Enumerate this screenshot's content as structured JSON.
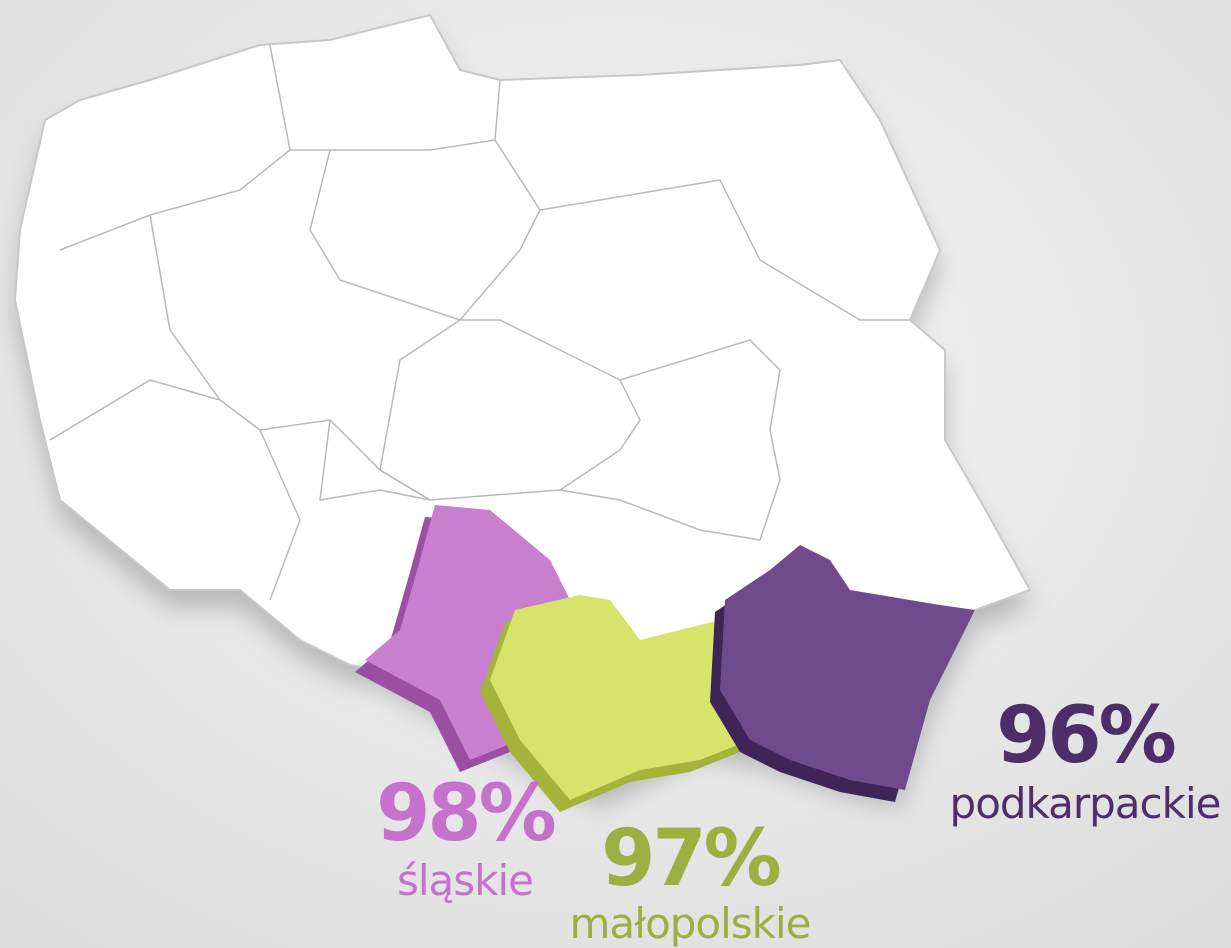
{
  "regions": [
    {
      "name": "śląskie",
      "value_label": "98%"
    },
    {
      "name": "małopolskie",
      "value_label": "97%"
    },
    {
      "name": "podkarpackie",
      "value_label": "96%"
    }
  ]
}
